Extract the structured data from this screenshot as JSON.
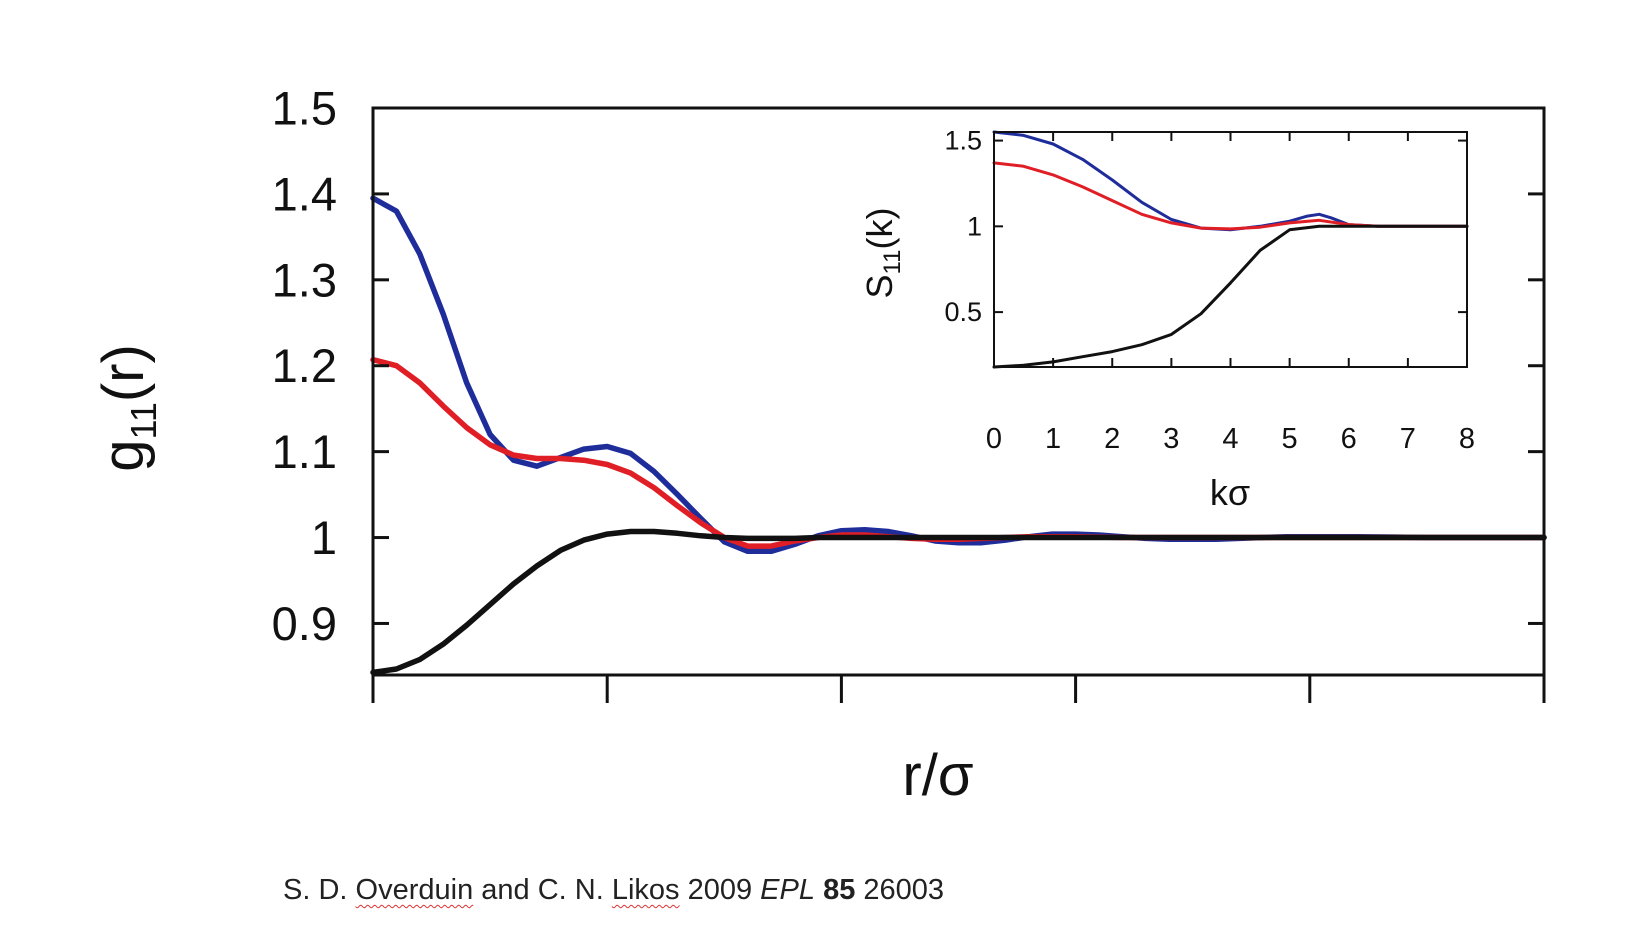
{
  "chart_data": [
    {
      "type": "line",
      "xlabel": "r/σ",
      "ylabel_main": "g",
      "ylabel_sub": "11",
      "ylabel_tail": "(r)",
      "xlim": [
        0,
        5
      ],
      "ylim": [
        0.84,
        1.5
      ],
      "yticks": [
        0.9,
        1.0,
        1.1,
        1.2,
        1.3,
        1.4,
        1.5
      ],
      "ytick_labels": [
        "0.9",
        "1",
        "1.1",
        "1.2",
        "1.3",
        "1.4",
        "1.5"
      ],
      "xticks": [
        0,
        1,
        2,
        3,
        4,
        5
      ],
      "xtick_labels": [],
      "series": [
        {
          "color": "#1f2d9b",
          "points": [
            [
              0,
              1.395
            ],
            [
              0.1,
              1.38
            ],
            [
              0.2,
              1.33
            ],
            [
              0.3,
              1.26
            ],
            [
              0.4,
              1.18
            ],
            [
              0.5,
              1.12
            ],
            [
              0.6,
              1.09
            ],
            [
              0.7,
              1.083
            ],
            [
              0.8,
              1.093
            ],
            [
              0.9,
              1.103
            ],
            [
              1.0,
              1.106
            ],
            [
              1.1,
              1.098
            ],
            [
              1.2,
              1.077
            ],
            [
              1.3,
              1.05
            ],
            [
              1.4,
              1.022
            ],
            [
              1.5,
              0.995
            ],
            [
              1.6,
              0.984
            ],
            [
              1.7,
              0.984
            ],
            [
              1.8,
              0.992
            ],
            [
              1.9,
              1.002
            ],
            [
              2.0,
              1.008
            ],
            [
              2.1,
              1.009
            ],
            [
              2.2,
              1.007
            ],
            [
              2.3,
              1.002
            ],
            [
              2.4,
              0.996
            ],
            [
              2.5,
              0.994
            ],
            [
              2.6,
              0.994
            ],
            [
              2.7,
              0.997
            ],
            [
              2.8,
              1.001
            ],
            [
              2.9,
              1.004
            ],
            [
              3.0,
              1.004
            ],
            [
              3.1,
              1.003
            ],
            [
              3.2,
              1.001
            ],
            [
              3.3,
              0.999
            ],
            [
              3.4,
              0.998
            ],
            [
              3.5,
              0.998
            ],
            [
              3.6,
              0.998
            ],
            [
              3.7,
              0.999
            ],
            [
              3.8,
              1.0
            ],
            [
              3.9,
              1.001
            ],
            [
              4.0,
              1.001
            ],
            [
              4.2,
              1.001
            ],
            [
              4.5,
              1.0
            ],
            [
              5.0,
              1.0
            ]
          ]
        },
        {
          "color": "#e01e26",
          "points": [
            [
              0,
              1.207
            ],
            [
              0.1,
              1.2
            ],
            [
              0.2,
              1.18
            ],
            [
              0.3,
              1.153
            ],
            [
              0.4,
              1.128
            ],
            [
              0.5,
              1.108
            ],
            [
              0.6,
              1.096
            ],
            [
              0.7,
              1.092
            ],
            [
              0.8,
              1.092
            ],
            [
              0.9,
              1.09
            ],
            [
              1.0,
              1.085
            ],
            [
              1.1,
              1.075
            ],
            [
              1.2,
              1.058
            ],
            [
              1.3,
              1.037
            ],
            [
              1.4,
              1.017
            ],
            [
              1.5,
              1.0
            ],
            [
              1.6,
              0.99
            ],
            [
              1.7,
              0.99
            ],
            [
              1.8,
              0.996
            ],
            [
              1.9,
              1.0
            ],
            [
              2.0,
              1.003
            ],
            [
              2.1,
              1.003
            ],
            [
              2.2,
              1.001
            ],
            [
              2.3,
              0.999
            ],
            [
              2.4,
              0.998
            ],
            [
              2.5,
              0.998
            ],
            [
              2.6,
              0.999
            ],
            [
              2.7,
              1.0
            ],
            [
              2.8,
              1.001
            ],
            [
              2.9,
              1.001
            ],
            [
              3.0,
              1.001
            ],
            [
              3.2,
              1.0
            ],
            [
              3.5,
              1.0
            ],
            [
              4.0,
              1.0
            ],
            [
              5.0,
              1.0
            ]
          ]
        },
        {
          "color": "#111111",
          "points": [
            [
              0,
              0.843
            ],
            [
              0.1,
              0.847
            ],
            [
              0.2,
              0.858
            ],
            [
              0.3,
              0.876
            ],
            [
              0.4,
              0.898
            ],
            [
              0.5,
              0.922
            ],
            [
              0.6,
              0.946
            ],
            [
              0.7,
              0.967
            ],
            [
              0.8,
              0.985
            ],
            [
              0.9,
              0.997
            ],
            [
              1.0,
              1.004
            ],
            [
              1.1,
              1.007
            ],
            [
              1.2,
              1.007
            ],
            [
              1.3,
              1.005
            ],
            [
              1.4,
              1.002
            ],
            [
              1.5,
              1.0
            ],
            [
              1.6,
              0.999
            ],
            [
              1.7,
              0.999
            ],
            [
              1.8,
              0.999
            ],
            [
              1.9,
              1.0
            ],
            [
              2.0,
              1.0
            ],
            [
              2.5,
              1.0
            ],
            [
              3.0,
              1.0
            ],
            [
              4.0,
              1.0
            ],
            [
              5.0,
              1.0
            ]
          ]
        }
      ]
    },
    {
      "type": "line",
      "xlabel": "kσ",
      "ylabel_main": "S",
      "ylabel_sub": "11",
      "ylabel_tail": "(k)",
      "xlim": [
        0,
        8
      ],
      "ylim": [
        0.18,
        1.55
      ],
      "yticks": [
        0.5,
        1.0,
        1.5
      ],
      "ytick_labels": [
        "0.5",
        "1",
        "1.5"
      ],
      "xticks": [
        0,
        1,
        2,
        3,
        4,
        5,
        6,
        7,
        8
      ],
      "xtick_labels": [
        "0",
        "1",
        "2",
        "3",
        "4",
        "5",
        "6",
        "7",
        "8"
      ],
      "series": [
        {
          "color": "#1f2d9b",
          "points": [
            [
              0,
              1.55
            ],
            [
              0.5,
              1.53
            ],
            [
              1.0,
              1.48
            ],
            [
              1.5,
              1.39
            ],
            [
              2.0,
              1.27
            ],
            [
              2.5,
              1.14
            ],
            [
              3.0,
              1.04
            ],
            [
              3.5,
              0.99
            ],
            [
              4.0,
              0.98
            ],
            [
              4.5,
              1.0
            ],
            [
              5.0,
              1.03
            ],
            [
              5.3,
              1.06
            ],
            [
              5.5,
              1.07
            ],
            [
              5.7,
              1.05
            ],
            [
              6.0,
              1.01
            ],
            [
              6.5,
              1.0
            ],
            [
              7.0,
              1.0
            ],
            [
              8.0,
              1.0
            ]
          ]
        },
        {
          "color": "#e01e26",
          "points": [
            [
              0,
              1.37
            ],
            [
              0.5,
              1.35
            ],
            [
              1.0,
              1.3
            ],
            [
              1.5,
              1.23
            ],
            [
              2.0,
              1.15
            ],
            [
              2.5,
              1.07
            ],
            [
              3.0,
              1.02
            ],
            [
              3.5,
              0.99
            ],
            [
              4.0,
              0.985
            ],
            [
              4.5,
              0.995
            ],
            [
              5.0,
              1.02
            ],
            [
              5.5,
              1.035
            ],
            [
              6.0,
              1.01
            ],
            [
              6.5,
              1.0
            ],
            [
              7.0,
              1.0
            ],
            [
              8.0,
              1.0
            ]
          ]
        },
        {
          "color": "#111111",
          "points": [
            [
              0,
              0.18
            ],
            [
              0.5,
              0.19
            ],
            [
              1.0,
              0.21
            ],
            [
              1.5,
              0.24
            ],
            [
              2.0,
              0.27
            ],
            [
              2.5,
              0.31
            ],
            [
              3.0,
              0.37
            ],
            [
              3.5,
              0.49
            ],
            [
              4.0,
              0.67
            ],
            [
              4.5,
              0.86
            ],
            [
              5.0,
              0.98
            ],
            [
              5.5,
              1.0
            ],
            [
              6.0,
              1.0
            ],
            [
              7.0,
              1.0
            ],
            [
              8.0,
              1.0
            ]
          ]
        }
      ]
    }
  ],
  "caption": {
    "authors_a": "S. D.",
    "name_1": "Overduin",
    "authors_b": "and C. N.",
    "name_2": "Likos",
    "year": "2009",
    "journal": "EPL",
    "volume": "85",
    "article": "26003"
  }
}
